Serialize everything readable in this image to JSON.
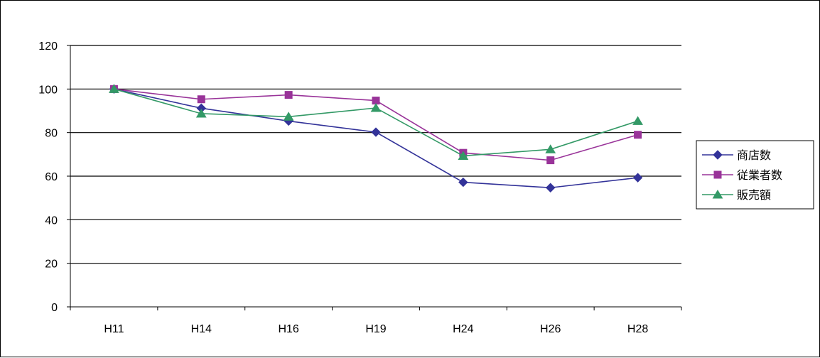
{
  "chart_data": {
    "type": "line",
    "title": "",
    "xlabel": "",
    "ylabel": "",
    "categories": [
      "H11",
      "H14",
      "H16",
      "H19",
      "H24",
      "H26",
      "H28"
    ],
    "ylim": [
      0,
      120
    ],
    "yticks": [
      0,
      20,
      40,
      60,
      80,
      100,
      120
    ],
    "grid": "horizontal",
    "legend_position": "right",
    "series": [
      {
        "name": "商店数",
        "color": "#333399",
        "marker": "diamond",
        "values": [
          100,
          91.2,
          85.3,
          80.2,
          57.2,
          54.7,
          59.3
        ]
      },
      {
        "name": "従業者数",
        "color": "#993399",
        "marker": "square",
        "values": [
          100,
          95.3,
          97.3,
          94.7,
          70.7,
          67.3,
          79.0
        ]
      },
      {
        "name": "販売額",
        "color": "#339966",
        "marker": "triangle",
        "values": [
          100,
          88.7,
          87.3,
          91.3,
          69.3,
          72.3,
          85.3
        ]
      }
    ]
  }
}
